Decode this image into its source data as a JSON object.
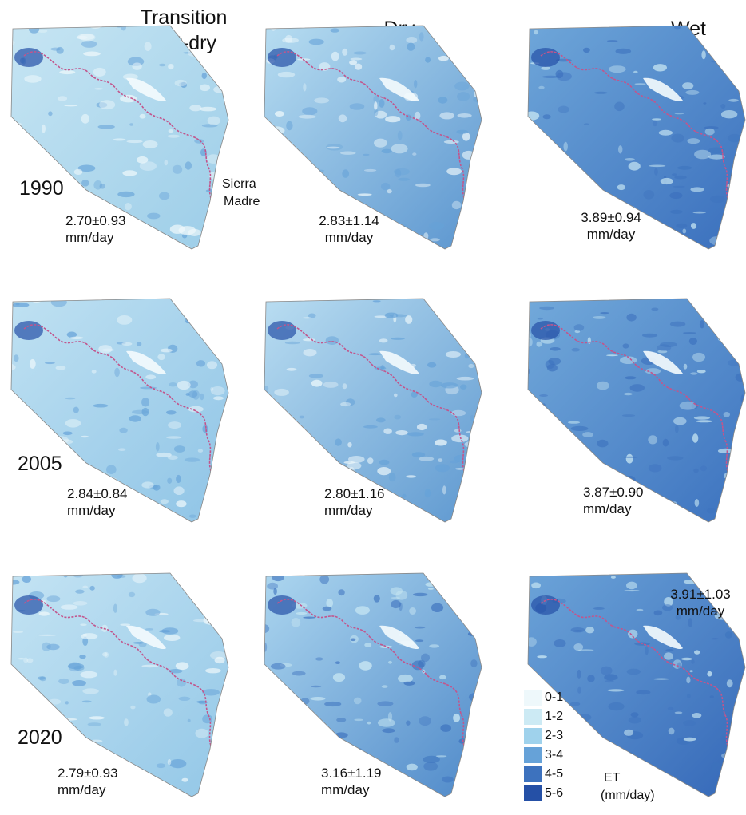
{
  "columns": [
    {
      "title_line1": "Transition",
      "title_line2": "wet-dry"
    },
    {
      "title_line1": "Dry",
      "title_line2": ""
    },
    {
      "title_line1": "Wet",
      "title_line2": ""
    }
  ],
  "rows": [
    {
      "year": "1990",
      "panels": [
        {
          "value": "2.70±0.93",
          "unit": "mm/day",
          "level": 2.7,
          "colors": [
            "#c6e5f3",
            "#9ccde8"
          ]
        },
        {
          "value": "2.83±1.14",
          "unit": "mm/day",
          "level": 2.83,
          "colors": [
            "#b7ddf1",
            "#5b95cf"
          ]
        },
        {
          "value": "3.89±0.94",
          "unit": "mm/day",
          "level": 3.89,
          "colors": [
            "#6ea6d9",
            "#3a6fbd"
          ]
        }
      ]
    },
    {
      "year": "2005",
      "panels": [
        {
          "value": "2.84±0.84",
          "unit": "mm/day",
          "level": 2.84,
          "colors": [
            "#bfe1f2",
            "#8fc4e6"
          ]
        },
        {
          "value": "2.80±1.16",
          "unit": "mm/day",
          "level": 2.8,
          "colors": [
            "#b9ddf1",
            "#5e98d0"
          ]
        },
        {
          "value": "3.87±0.90",
          "unit": "mm/day",
          "level": 3.87,
          "colors": [
            "#72a9da",
            "#3c72bf"
          ]
        }
      ]
    },
    {
      "year": "2020",
      "panels": [
        {
          "value": "2.79±0.93",
          "unit": "mm/day",
          "level": 2.79,
          "colors": [
            "#c3e3f3",
            "#93c7e7"
          ]
        },
        {
          "value": "3.16±1.19",
          "unit": "mm/day",
          "level": 3.16,
          "colors": [
            "#acd6ef",
            "#4f89c9"
          ]
        },
        {
          "value": "3.91±1.03",
          "unit": "mm/day",
          "level": 3.91,
          "colors": [
            "#6ba3d8",
            "#3568b8"
          ]
        }
      ]
    }
  ],
  "region_label": {
    "line1": "Sierra",
    "line2": "Madre"
  },
  "river_color": "#c2558c",
  "legend": {
    "title_line1": "ET",
    "title_line2": "(mm/day)",
    "items": [
      {
        "label": "0-1",
        "color": "#eef8fb"
      },
      {
        "label": "1-2",
        "color": "#cceaf4"
      },
      {
        "label": "2-3",
        "color": "#9fd2ec"
      },
      {
        "label": "3-4",
        "color": "#66a2d8"
      },
      {
        "label": "4-5",
        "color": "#3d72be"
      },
      {
        "label": "5-6",
        "color": "#2550a6"
      }
    ]
  }
}
